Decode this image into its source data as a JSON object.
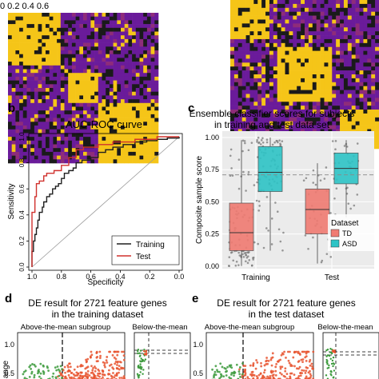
{
  "top": {
    "scale_label": "0 0.2 0.4 0.6",
    "heatmap_colors": [
      "#6a1b9a",
      "#f5c518",
      "#1a1a1a",
      "#8e2c7a"
    ]
  },
  "panel_b": {
    "letter": "b",
    "chart_data": {
      "type": "line",
      "title": "AUC-ROC curve",
      "xlabel": "Specificity",
      "ylabel": "Sensitivity",
      "xlim": [
        1.0,
        0.0
      ],
      "ylim": [
        0.0,
        1.0
      ],
      "x_ticks": [
        "1.0",
        "0.8",
        "0.6",
        "0.4",
        "0.2",
        "0.0"
      ],
      "y_ticks": [
        "0.0",
        "0.2",
        "0.4",
        "0.6",
        "0.8",
        "1.0"
      ],
      "legend_position": "bottom-right",
      "series": [
        {
          "name": "Training",
          "color": "#1f1f1f",
          "points": [
            [
              1.0,
              0.0
            ],
            [
              1.0,
              0.12
            ],
            [
              0.99,
              0.2
            ],
            [
              0.98,
              0.25
            ],
            [
              0.97,
              0.3
            ],
            [
              0.96,
              0.36
            ],
            [
              0.95,
              0.42
            ],
            [
              0.93,
              0.46
            ],
            [
              0.92,
              0.5
            ],
            [
              0.9,
              0.54
            ],
            [
              0.88,
              0.56
            ],
            [
              0.86,
              0.6
            ],
            [
              0.84,
              0.62
            ],
            [
              0.82,
              0.64
            ],
            [
              0.8,
              0.68
            ],
            [
              0.78,
              0.72
            ],
            [
              0.75,
              0.74
            ],
            [
              0.72,
              0.76
            ],
            [
              0.7,
              0.8
            ],
            [
              0.66,
              0.82
            ],
            [
              0.6,
              0.84
            ],
            [
              0.55,
              0.88
            ],
            [
              0.5,
              0.9
            ],
            [
              0.45,
              0.92
            ],
            [
              0.38,
              0.94
            ],
            [
              0.3,
              0.96
            ],
            [
              0.22,
              0.97
            ],
            [
              0.15,
              0.98
            ],
            [
              0.08,
              0.99
            ],
            [
              0.0,
              1.0
            ]
          ]
        },
        {
          "name": "Test",
          "color": "#d0312d",
          "points": [
            [
              1.0,
              0.0
            ],
            [
              1.0,
              0.42
            ],
            [
              0.98,
              0.54
            ],
            [
              0.97,
              0.64
            ],
            [
              0.95,
              0.66
            ],
            [
              0.92,
              0.7
            ],
            [
              0.9,
              0.72
            ],
            [
              0.85,
              0.74
            ],
            [
              0.8,
              0.78
            ],
            [
              0.75,
              0.84
            ],
            [
              0.7,
              0.9
            ],
            [
              0.65,
              0.92
            ],
            [
              0.55,
              0.94
            ],
            [
              0.45,
              0.96
            ],
            [
              0.3,
              0.98
            ],
            [
              0.15,
              1.0
            ],
            [
              0.0,
              1.0
            ]
          ]
        }
      ],
      "diagonal": true
    }
  },
  "panel_c": {
    "letter": "c",
    "chart_data": {
      "type": "box",
      "title": "Ensemble classifier scores for subjects",
      "subtitle": "in training and test data set",
      "ylabel": "Composite sample score",
      "categories": [
        "Training",
        "Test"
      ],
      "ylim": [
        -0.02,
        1.05
      ],
      "y_ticks": [
        "0.00",
        "0.25",
        "0.50",
        "0.75",
        "1.00"
      ],
      "threshold": 0.71,
      "legend_title": "Dataset",
      "legend_position": "right",
      "series": [
        {
          "name": "TD",
          "color": "#f07b72",
          "boxes": [
            {
              "q1": 0.12,
              "median": 0.26,
              "q3": 0.49,
              "whisker_low": 0.0,
              "whisker_high": 0.98
            },
            {
              "q1": 0.25,
              "median": 0.44,
              "q3": 0.6,
              "whisker_low": 0.02,
              "whisker_high": 0.8
            }
          ]
        },
        {
          "name": "ASD",
          "color": "#2ec4c6",
          "boxes": [
            {
              "q1": 0.58,
              "median": 0.73,
              "q3": 0.93,
              "whisker_low": 0.12,
              "whisker_high": 1.0
            },
            {
              "q1": 0.64,
              "median": 0.76,
              "q3": 0.88,
              "whisker_low": 0.38,
              "whisker_high": 0.98
            }
          ]
        }
      ]
    }
  },
  "panel_d": {
    "letter": "d",
    "title_line1": "DE result for 2721 feature genes",
    "title_line2": "in the training dataset",
    "sub_left": "Above-the-mean subgroup",
    "sub_right": "Below-the-mean",
    "y_tick": "1.0",
    "y_tick_low": "0.5",
    "ylabel_fragment": "ange"
  },
  "panel_e": {
    "letter": "e",
    "title_line1": "DE result for 2721 feature genes",
    "title_line2": "in the test dataset",
    "sub_left": "Above-the-mean subgroup",
    "sub_right": "Below-the-mean",
    "y_tick": "1.0",
    "y_tick_low": "0.5"
  }
}
